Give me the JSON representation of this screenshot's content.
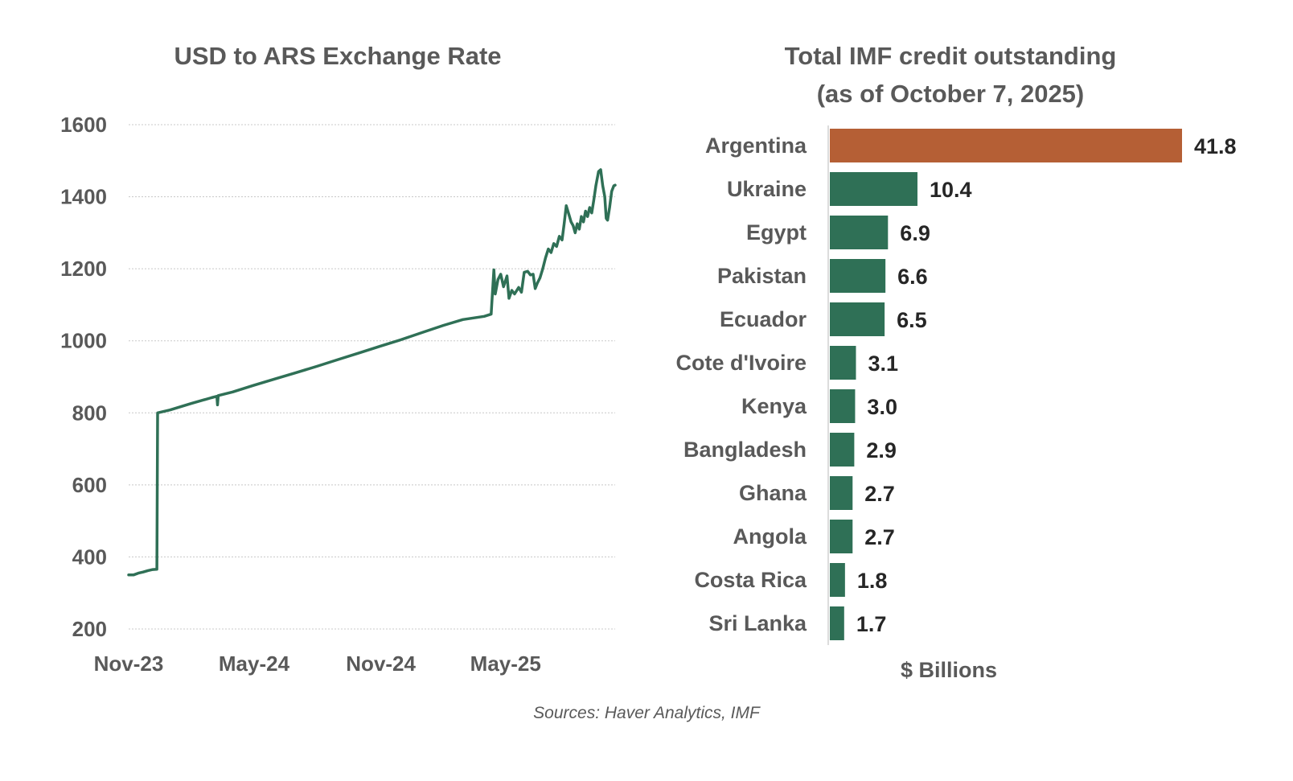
{
  "colors": {
    "line": "#2f7056",
    "bar_default": "#2f7056",
    "bar_highlight": "#b55f35",
    "text": "#595959",
    "value_text": "#262626",
    "grid": "#c8c8c8"
  },
  "source": "Sources: Haver Analytics, IMF",
  "chart_data": [
    {
      "type": "line",
      "title": "USD to ARS Exchange Rate",
      "xlabel": "",
      "ylabel": "",
      "ylim": [
        200,
        1600
      ],
      "y_ticks": [
        1600,
        1400,
        1200,
        1000,
        800,
        600,
        400,
        200
      ],
      "x_ticks": [
        {
          "date": "2023-11-01",
          "label": "Nov-23"
        },
        {
          "date": "2024-05-01",
          "label": "May-24"
        },
        {
          "date": "2024-11-01",
          "label": "Nov-24"
        },
        {
          "date": "2025-05-01",
          "label": "May-25"
        }
      ],
      "xlim": [
        "2023-11-01",
        "2025-10-07"
      ],
      "grid": true,
      "series": [
        {
          "name": "",
          "points": [
            [
              "2023-11-01",
              350
            ],
            [
              "2023-11-08",
              350
            ],
            [
              "2023-11-15",
              355
            ],
            [
              "2023-11-22",
              358
            ],
            [
              "2023-11-29",
              362
            ],
            [
              "2023-12-06",
              365
            ],
            [
              "2023-12-12",
              366
            ],
            [
              "2023-12-13",
              800
            ],
            [
              "2023-12-31",
              808
            ],
            [
              "2024-01-31",
              826
            ],
            [
              "2024-02-29",
              842
            ],
            [
              "2024-03-08",
              846
            ],
            [
              "2024-03-09",
              822
            ],
            [
              "2024-03-10",
              848
            ],
            [
              "2024-03-31",
              858
            ],
            [
              "2024-04-30",
              876
            ],
            [
              "2024-05-31",
              894
            ],
            [
              "2024-06-30",
              911
            ],
            [
              "2024-07-31",
              929
            ],
            [
              "2024-08-31",
              948
            ],
            [
              "2024-09-30",
              966
            ],
            [
              "2024-10-31",
              985
            ],
            [
              "2024-11-30",
              1003
            ],
            [
              "2024-12-31",
              1023
            ],
            [
              "2025-01-31",
              1043
            ],
            [
              "2025-02-28",
              1059
            ],
            [
              "2025-03-31",
              1068
            ],
            [
              "2025-04-10",
              1074
            ],
            [
              "2025-04-14",
              1197
            ],
            [
              "2025-04-16",
              1130
            ],
            [
              "2025-04-20",
              1170
            ],
            [
              "2025-04-24",
              1185
            ],
            [
              "2025-04-28",
              1150
            ],
            [
              "2025-05-03",
              1180
            ],
            [
              "2025-05-06",
              1118
            ],
            [
              "2025-05-10",
              1140
            ],
            [
              "2025-05-14",
              1130
            ],
            [
              "2025-05-20",
              1148
            ],
            [
              "2025-05-24",
              1135
            ],
            [
              "2025-05-28",
              1190
            ],
            [
              "2025-06-02",
              1193
            ],
            [
              "2025-06-06",
              1183
            ],
            [
              "2025-06-10",
              1185
            ],
            [
              "2025-06-13",
              1145
            ],
            [
              "2025-06-16",
              1160
            ],
            [
              "2025-06-20",
              1175
            ],
            [
              "2025-06-24",
              1200
            ],
            [
              "2025-06-28",
              1230
            ],
            [
              "2025-07-02",
              1255
            ],
            [
              "2025-07-06",
              1245
            ],
            [
              "2025-07-10",
              1270
            ],
            [
              "2025-07-14",
              1262
            ],
            [
              "2025-07-18",
              1290
            ],
            [
              "2025-07-22",
              1280
            ],
            [
              "2025-07-25",
              1325
            ],
            [
              "2025-07-28",
              1375
            ],
            [
              "2025-08-01",
              1350
            ],
            [
              "2025-08-04",
              1330
            ],
            [
              "2025-08-07",
              1320
            ],
            [
              "2025-08-10",
              1300
            ],
            [
              "2025-08-13",
              1325
            ],
            [
              "2025-08-16",
              1310
            ],
            [
              "2025-08-19",
              1345
            ],
            [
              "2025-08-22",
              1330
            ],
            [
              "2025-08-25",
              1360
            ],
            [
              "2025-08-28",
              1345
            ],
            [
              "2025-08-31",
              1370
            ],
            [
              "2025-09-03",
              1355
            ],
            [
              "2025-09-06",
              1390
            ],
            [
              "2025-09-09",
              1430
            ],
            [
              "2025-09-13",
              1470
            ],
            [
              "2025-09-16",
              1475
            ],
            [
              "2025-09-19",
              1430
            ],
            [
              "2025-09-22",
              1400
            ],
            [
              "2025-09-24",
              1340
            ],
            [
              "2025-09-26",
              1335
            ],
            [
              "2025-09-29",
              1370
            ],
            [
              "2025-10-02",
              1415
            ],
            [
              "2025-10-05",
              1430
            ],
            [
              "2025-10-07",
              1432
            ]
          ]
        }
      ]
    },
    {
      "type": "bar",
      "orientation": "horizontal",
      "title": "Total IMF credit outstanding",
      "subtitle": "(as of October 7, 2025)",
      "xlabel": "$ Billions",
      "ylabel": "",
      "xlim": [
        0,
        41.8
      ],
      "grid": false,
      "categories": [
        "Argentina",
        "Ukraine",
        "Egypt",
        "Pakistan",
        "Ecuador",
        "Cote d'Ivoire",
        "Kenya",
        "Bangladesh",
        "Ghana",
        "Angola",
        "Costa Rica",
        "Sri Lanka"
      ],
      "values": [
        41.8,
        10.4,
        6.9,
        6.6,
        6.5,
        3.1,
        3.0,
        2.9,
        2.7,
        2.7,
        1.8,
        1.7
      ],
      "value_labels": [
        "41.8",
        "10.4",
        "6.9",
        "6.6",
        "6.5",
        "3.1",
        "3.0",
        "2.9",
        "2.7",
        "2.7",
        "1.8",
        "1.7"
      ],
      "highlight": "Argentina"
    }
  ]
}
